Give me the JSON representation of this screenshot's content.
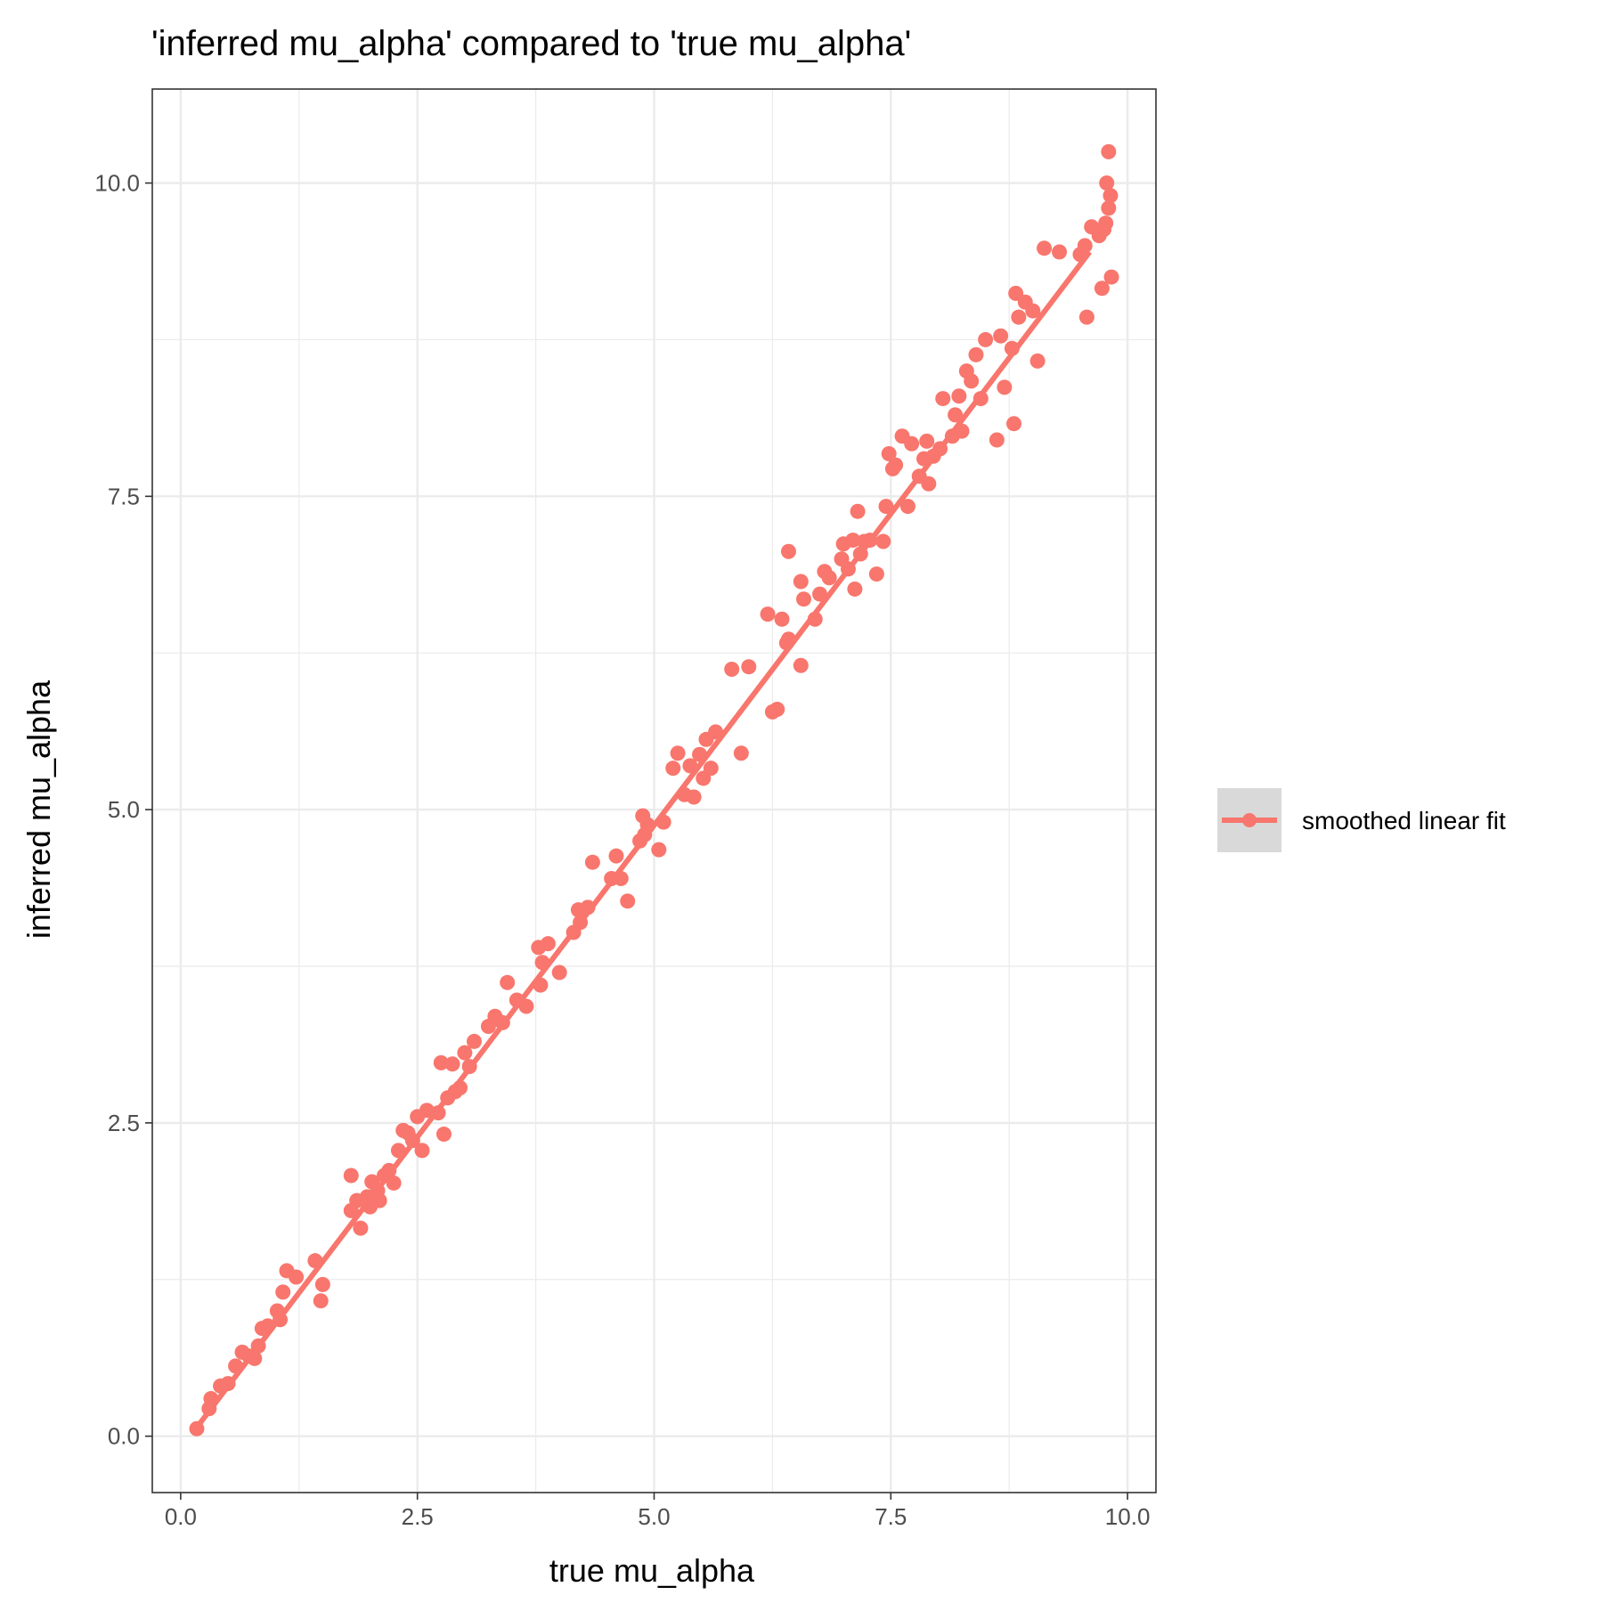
{
  "chart_data": {
    "type": "scatter",
    "title": "'inferred mu_alpha' compared to 'true mu_alpha'",
    "xlabel": "true mu_alpha",
    "ylabel": "inferred mu_alpha",
    "xlim": [
      -0.3,
      10.3
    ],
    "ylim": [
      -0.45,
      10.75
    ],
    "x_ticks": [
      "0.0",
      "2.5",
      "5.0",
      "7.5",
      "10.0"
    ],
    "y_ticks": [
      "0.0",
      "2.5",
      "5.0",
      "7.5",
      "10.0"
    ],
    "x_tick_values": [
      0,
      2.5,
      5,
      7.5,
      10
    ],
    "y_tick_values": [
      0,
      2.5,
      5,
      7.5,
      10
    ],
    "grid": true,
    "legend_position": "right",
    "color": "#F8766D",
    "series": [
      {
        "name": "smoothed linear fit",
        "fit_line": [
          [
            0.18,
            0.08
          ],
          [
            9.6,
            9.45
          ]
        ],
        "points": [
          [
            0.17,
            0.06
          ],
          [
            0.3,
            0.22
          ],
          [
            0.32,
            0.3
          ],
          [
            0.42,
            0.4
          ],
          [
            0.5,
            0.42
          ],
          [
            0.58,
            0.56
          ],
          [
            0.65,
            0.67
          ],
          [
            0.72,
            0.64
          ],
          [
            0.78,
            0.62
          ],
          [
            0.82,
            0.72
          ],
          [
            0.86,
            0.86
          ],
          [
            0.92,
            0.88
          ],
          [
            1.02,
            1.0
          ],
          [
            1.05,
            0.93
          ],
          [
            1.08,
            1.15
          ],
          [
            1.12,
            1.32
          ],
          [
            1.22,
            1.27
          ],
          [
            1.42,
            1.4
          ],
          [
            1.48,
            1.08
          ],
          [
            1.5,
            1.21
          ],
          [
            1.8,
            1.8
          ],
          [
            1.8,
            2.08
          ],
          [
            1.86,
            1.88
          ],
          [
            1.9,
            1.66
          ],
          [
            1.97,
            1.91
          ],
          [
            2.0,
            1.83
          ],
          [
            2.02,
            2.03
          ],
          [
            2.08,
            1.96
          ],
          [
            2.1,
            1.88
          ],
          [
            2.15,
            2.08
          ],
          [
            2.2,
            2.12
          ],
          [
            2.25,
            2.02
          ],
          [
            2.3,
            2.28
          ],
          [
            2.35,
            2.44
          ],
          [
            2.4,
            2.42
          ],
          [
            2.45,
            2.36
          ],
          [
            2.5,
            2.55
          ],
          [
            2.55,
            2.28
          ],
          [
            2.6,
            2.6
          ],
          [
            2.72,
            2.58
          ],
          [
            2.75,
            2.98
          ],
          [
            2.78,
            2.41
          ],
          [
            2.82,
            2.7
          ],
          [
            2.87,
            2.97
          ],
          [
            2.9,
            2.75
          ],
          [
            2.95,
            2.78
          ],
          [
            3.0,
            3.06
          ],
          [
            3.05,
            2.95
          ],
          [
            3.1,
            3.15
          ],
          [
            3.25,
            3.27
          ],
          [
            3.32,
            3.35
          ],
          [
            3.4,
            3.3
          ],
          [
            3.45,
            3.62
          ],
          [
            3.55,
            3.48
          ],
          [
            3.65,
            3.43
          ],
          [
            3.78,
            3.9
          ],
          [
            3.8,
            3.6
          ],
          [
            3.82,
            3.78
          ],
          [
            3.88,
            3.93
          ],
          [
            4.0,
            3.7
          ],
          [
            4.15,
            4.02
          ],
          [
            4.2,
            4.2
          ],
          [
            4.22,
            4.1
          ],
          [
            4.3,
            4.22
          ],
          [
            4.35,
            4.58
          ],
          [
            4.55,
            4.45
          ],
          [
            4.6,
            4.63
          ],
          [
            4.65,
            4.45
          ],
          [
            4.72,
            4.27
          ],
          [
            4.85,
            4.75
          ],
          [
            4.88,
            4.95
          ],
          [
            4.9,
            4.8
          ],
          [
            4.93,
            4.88
          ],
          [
            5.05,
            4.68
          ],
          [
            5.1,
            4.9
          ],
          [
            5.2,
            5.33
          ],
          [
            5.25,
            5.45
          ],
          [
            5.32,
            5.12
          ],
          [
            5.38,
            5.35
          ],
          [
            5.42,
            5.1
          ],
          [
            5.48,
            5.44
          ],
          [
            5.52,
            5.25
          ],
          [
            5.55,
            5.56
          ],
          [
            5.6,
            5.33
          ],
          [
            5.65,
            5.62
          ],
          [
            5.82,
            6.12
          ],
          [
            5.92,
            5.45
          ],
          [
            6.0,
            6.14
          ],
          [
            6.2,
            6.56
          ],
          [
            6.25,
            5.78
          ],
          [
            6.3,
            5.8
          ],
          [
            6.35,
            6.52
          ],
          [
            6.4,
            6.33
          ],
          [
            6.42,
            6.36
          ],
          [
            6.42,
            7.06
          ],
          [
            6.55,
            6.82
          ],
          [
            6.58,
            6.68
          ],
          [
            6.55,
            6.15
          ],
          [
            6.7,
            6.52
          ],
          [
            6.75,
            6.72
          ],
          [
            6.8,
            6.9
          ],
          [
            6.85,
            6.85
          ],
          [
            6.98,
            7.0
          ],
          [
            7.0,
            7.12
          ],
          [
            7.05,
            6.92
          ],
          [
            7.1,
            7.15
          ],
          [
            7.12,
            6.76
          ],
          [
            7.15,
            7.38
          ],
          [
            7.18,
            7.04
          ],
          [
            7.22,
            7.14
          ],
          [
            7.28,
            7.15
          ],
          [
            7.35,
            6.88
          ],
          [
            7.42,
            7.14
          ],
          [
            7.45,
            7.42
          ],
          [
            7.48,
            7.84
          ],
          [
            7.52,
            7.72
          ],
          [
            7.55,
            7.75
          ],
          [
            7.62,
            7.98
          ],
          [
            7.68,
            7.42
          ],
          [
            7.72,
            7.92
          ],
          [
            7.8,
            7.66
          ],
          [
            7.85,
            7.8
          ],
          [
            7.88,
            7.94
          ],
          [
            7.9,
            7.6
          ],
          [
            7.95,
            7.82
          ],
          [
            8.02,
            7.88
          ],
          [
            8.05,
            8.28
          ],
          [
            8.15,
            7.98
          ],
          [
            8.18,
            8.15
          ],
          [
            8.22,
            8.3
          ],
          [
            8.25,
            8.02
          ],
          [
            8.3,
            8.5
          ],
          [
            8.35,
            8.42
          ],
          [
            8.4,
            8.63
          ],
          [
            8.45,
            8.28
          ],
          [
            8.5,
            8.75
          ],
          [
            8.62,
            7.95
          ],
          [
            8.66,
            8.78
          ],
          [
            8.7,
            8.37
          ],
          [
            8.78,
            8.68
          ],
          [
            8.8,
            8.08
          ],
          [
            8.82,
            9.12
          ],
          [
            8.85,
            8.93
          ],
          [
            8.92,
            9.05
          ],
          [
            9.0,
            8.98
          ],
          [
            9.05,
            8.58
          ],
          [
            9.12,
            9.48
          ],
          [
            9.28,
            9.45
          ],
          [
            9.5,
            9.43
          ],
          [
            9.55,
            9.5
          ],
          [
            9.57,
            8.93
          ],
          [
            9.62,
            9.65
          ],
          [
            9.7,
            9.58
          ],
          [
            9.73,
            9.16
          ],
          [
            9.75,
            9.63
          ],
          [
            9.77,
            9.68
          ],
          [
            9.78,
            10.0
          ],
          [
            9.8,
            9.8
          ],
          [
            9.8,
            10.25
          ],
          [
            9.82,
            9.9
          ],
          [
            9.83,
            9.25
          ]
        ]
      }
    ]
  }
}
